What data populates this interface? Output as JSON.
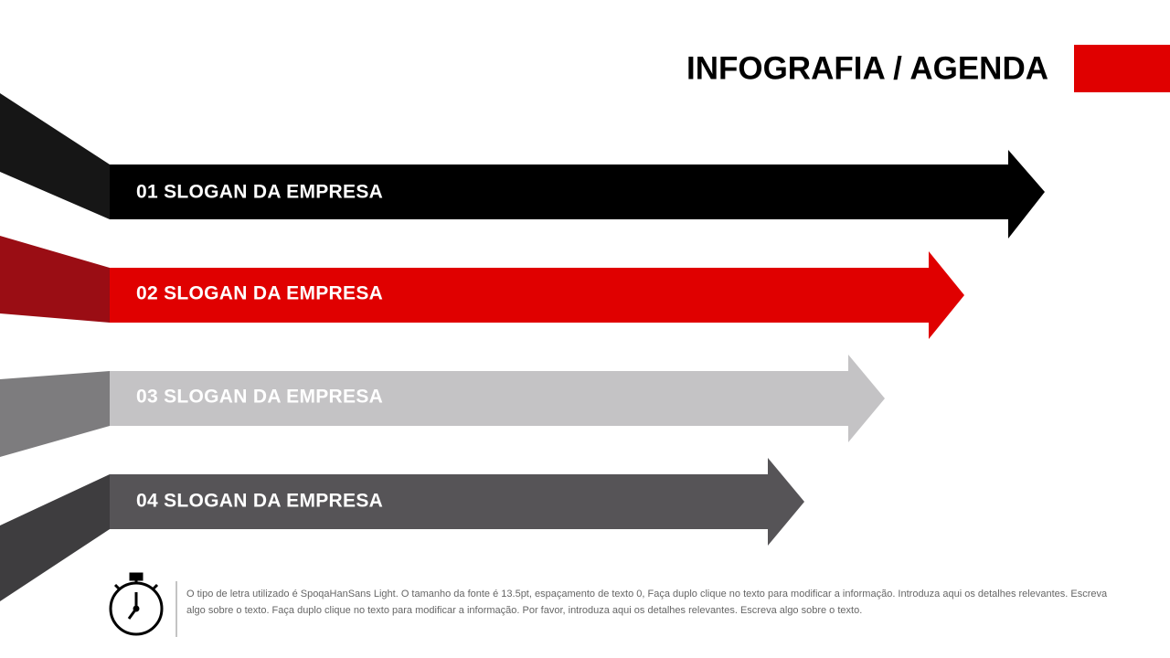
{
  "header": {
    "title": "INFOGRAFIA / AGENDA"
  },
  "items": [
    {
      "label": "01 SLOGAN DA EMPRESA"
    },
    {
      "label": "02 SLOGAN DA EMPRESA"
    },
    {
      "label": "03 SLOGAN DA EMPRESA"
    },
    {
      "label": "04 SLOGAN DA EMPRESA"
    }
  ],
  "footer": {
    "text": "O tipo de letra utilizado é SpoqaHanSans Light. O tamanho da fonte é 13.5pt, espaçamento de texto 0, Faça duplo clique no texto para modificar a informação. Introduza aqui os detalhes relevantes. Escreva algo sobre o texto. Faça duplo clique no texto para modificar a informação. Por favor, introduza aqui os detalhes relevantes. Escreva algo sobre o texto."
  }
}
